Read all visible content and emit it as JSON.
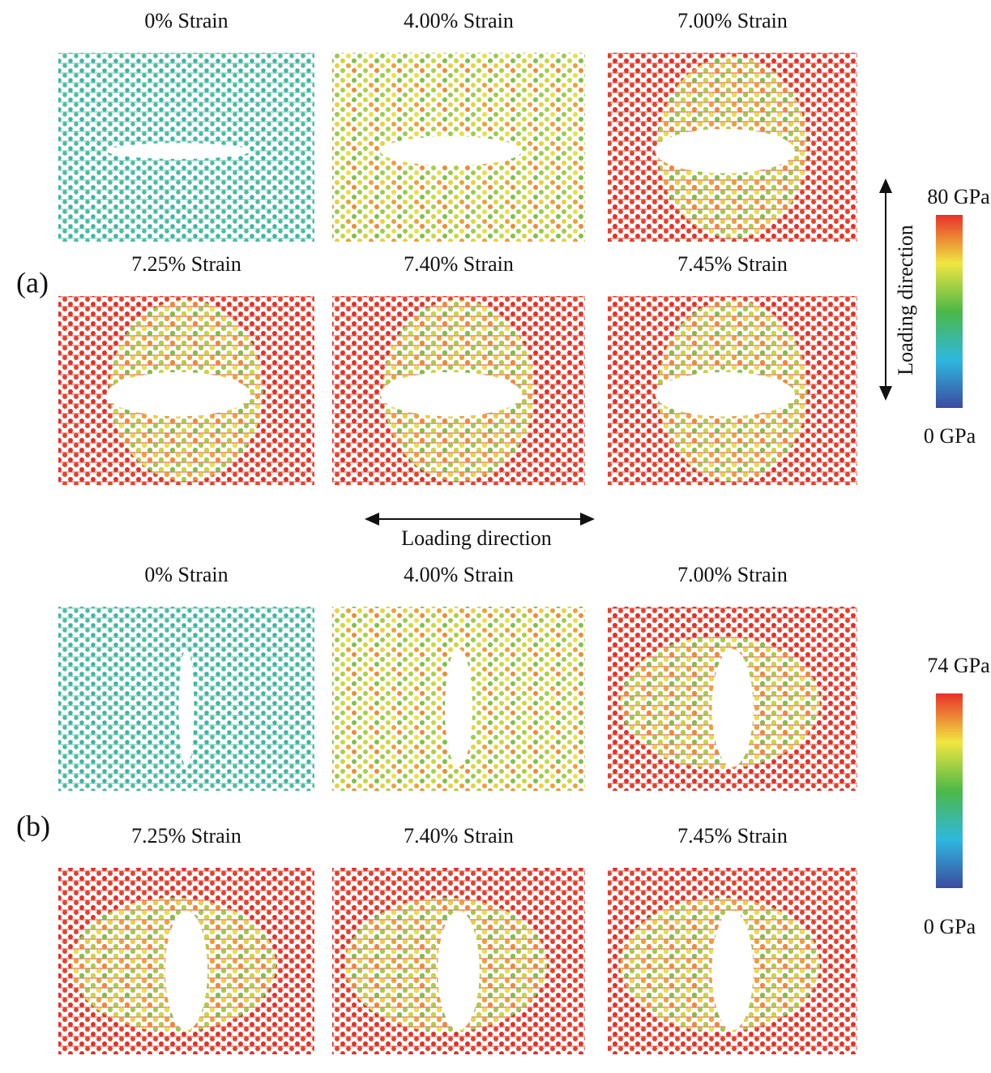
{
  "panels": [
    {
      "label": "(a)",
      "frames": [
        {
          "title": "0% Strain"
        },
        {
          "title": "4.00% Strain"
        },
        {
          "title": "7.00% Strain"
        },
        {
          "title": "7.25% Strain"
        },
        {
          "title": "7.40% Strain"
        },
        {
          "title": "7.45% Strain"
        }
      ],
      "loading_direction": "Loading direction",
      "colorbar": {
        "max": "80 GPa",
        "min": "0 GPa"
      }
    },
    {
      "label": "(b)",
      "frames": [
        {
          "title": "0% Strain"
        },
        {
          "title": "4.00% Strain"
        },
        {
          "title": "7.00% Strain"
        },
        {
          "title": "7.25% Strain"
        },
        {
          "title": "7.40% Strain"
        },
        {
          "title": "7.45% Strain"
        }
      ],
      "loading_direction": "Loading direction",
      "colorbar": {
        "max": "74 GPa",
        "min": "0 GPa"
      }
    }
  ]
}
